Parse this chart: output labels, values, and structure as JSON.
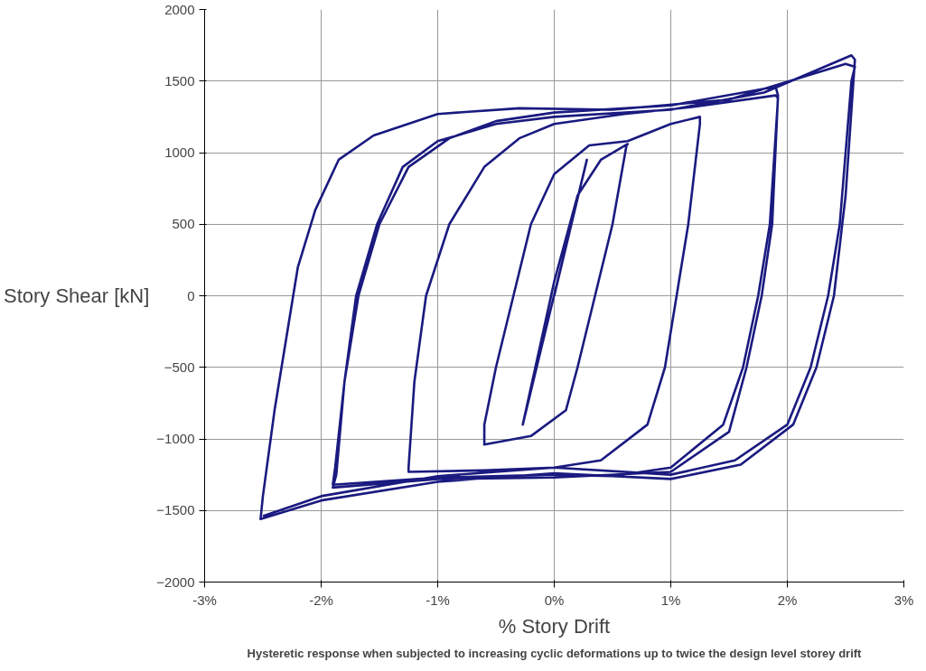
{
  "chart_data": {
    "type": "line",
    "xlabel": "% Story Drift",
    "ylabel": "Story Shear [kN]",
    "annotations": [
      "Hysteretic response when subjected to increasing cyclic deformations up to twice the design level storey drift"
    ],
    "xlim": [
      -3,
      3
    ],
    "ylim": [
      -2000,
      2000
    ],
    "xticks": [
      {
        "value": -3,
        "label": "-3%"
      },
      {
        "value": -2,
        "label": "-2%"
      },
      {
        "value": -1,
        "label": "-1%"
      },
      {
        "value": 0,
        "label": "0%"
      },
      {
        "value": 1,
        "label": "1%"
      },
      {
        "value": 2,
        "label": "2%"
      },
      {
        "value": 3,
        "label": "3%"
      }
    ],
    "yticks": [
      -2000,
      -1500,
      -1000,
      -500,
      0,
      500,
      1000,
      1500,
      2000
    ],
    "grid": true,
    "marker": "none",
    "line_style": "solid",
    "series": [
      {
        "color": "#1a1a80",
        "x": [
          0,
          0.28,
          -0.27,
          0,
          0.2,
          0.4,
          0.63,
          0.62,
          0.5,
          0.35,
          0.2,
          0.1,
          -0.2,
          -0.6,
          -0.6,
          -0.5,
          -0.35,
          -0.2,
          0,
          0.3,
          0.63,
          1.0,
          1.25,
          1.25,
          1.15,
          1.05,
          0.95,
          0.8,
          0.4,
          0,
          -0.6,
          -1.25,
          -1.25,
          -1.2,
          -1.1,
          -0.9,
          -0.6,
          -0.3,
          0,
          0.6,
          1.2,
          1.9,
          1.92,
          1.85,
          1.75,
          1.62,
          1.45,
          1.0,
          0.5,
          0,
          -1.0,
          -1.9,
          -1.88,
          -1.8,
          -1.68,
          -1.5,
          -1.25,
          -0.9,
          -0.5,
          0,
          1.0,
          1.9,
          1.92,
          1.87,
          1.78,
          1.65,
          1.5,
          1.0,
          0,
          -1.0,
          -1.9,
          -1.87,
          -1.8,
          -1.7,
          -1.52,
          -1.3,
          -1.0,
          -0.5,
          0,
          1.0,
          1.8,
          2.55,
          2.58,
          2.5,
          2.4,
          2.25,
          2.05,
          1.6,
          1.0,
          0,
          -1.0,
          -2.0,
          -2.52,
          -2.5,
          -2.4,
          -2.3,
          -2.2,
          -2.05,
          -1.85,
          -1.55,
          -1.0,
          -0.3,
          0.5,
          1.5,
          2.5,
          2.58,
          2.55,
          2.45,
          2.35,
          2.2,
          2.0,
          1.55,
          1.0,
          0,
          -1.0,
          -2.0,
          -2.5
        ],
        "values": [
          0,
          950,
          -900,
          100,
          700,
          950,
          1060,
          1050,
          500,
          0,
          -500,
          -800,
          -980,
          -1040,
          -900,
          -500,
          0,
          500,
          850,
          1050,
          1080,
          1200,
          1250,
          1200,
          500,
          0,
          -500,
          -900,
          -1150,
          -1200,
          -1220,
          -1230,
          -1200,
          -600,
          0,
          500,
          900,
          1100,
          1200,
          1270,
          1320,
          1400,
          1380,
          500,
          0,
          -500,
          -900,
          -1200,
          -1260,
          -1250,
          -1270,
          -1320,
          -1200,
          -600,
          0,
          500,
          900,
          1100,
          1220,
          1280,
          1330,
          1460,
          1400,
          500,
          0,
          -500,
          -950,
          -1230,
          -1270,
          -1280,
          -1340,
          -1250,
          -600,
          0,
          500,
          900,
          1080,
          1200,
          1250,
          1300,
          1420,
          1680,
          1650,
          700,
          0,
          -500,
          -900,
          -1180,
          -1280,
          -1240,
          -1300,
          -1430,
          -1560,
          -1400,
          -800,
          -300,
          200,
          600,
          950,
          1120,
          1270,
          1310,
          1300,
          1370,
          1620,
          1600,
          1500,
          500,
          0,
          -500,
          -900,
          -1150,
          -1250,
          -1200,
          -1260,
          -1400,
          -1540
        ]
      }
    ]
  }
}
